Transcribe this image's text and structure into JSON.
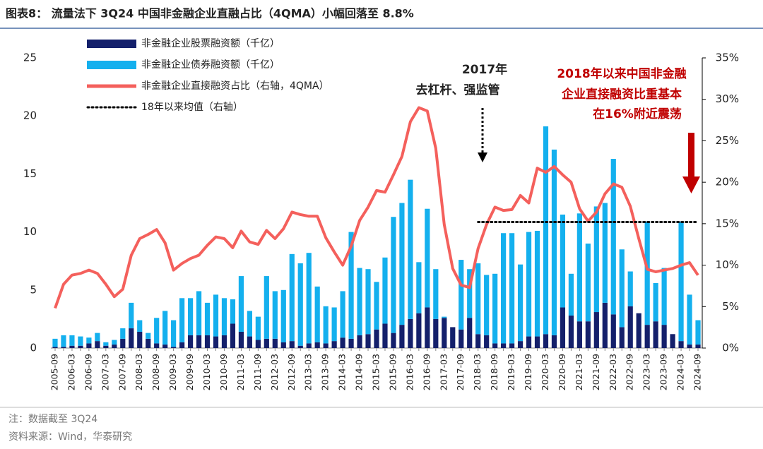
{
  "chart_data": {
    "type": "bar",
    "title": "图表8：  流量法下 3Q24 中国非金融企业直融占比（4QMA）小幅回落至 8.8%",
    "notes": [
      "注：数据截至 3Q24",
      "资料来源：Wind，华泰研究"
    ],
    "annotations": [
      "2017年",
      "去杠杆、强监管",
      "2018年以来中国非金融",
      "企业直接融资比重基本",
      "在16%附近震荡"
    ],
    "categories": [
      "2005-09",
      null,
      "2006-03",
      null,
      "2006-09",
      null,
      "2007-03",
      null,
      "2007-09",
      null,
      "2008-03",
      null,
      "2008-09",
      null,
      "2009-03",
      null,
      "2009-09",
      null,
      "2010-03",
      null,
      "2010-09",
      null,
      "2011-03",
      null,
      "2011-09",
      null,
      "2012-03",
      null,
      "2012-09",
      null,
      "2013-03",
      null,
      "2013-09",
      null,
      "2014-03",
      null,
      "2014-09",
      null,
      "2015-03",
      null,
      "2015-09",
      null,
      "2016-03",
      null,
      "2016-09",
      null,
      "2017-03",
      null,
      "2017-09",
      null,
      "2018-03",
      null,
      "2018-09",
      null,
      "2019-03",
      null,
      "2019-09",
      null,
      "2020-03",
      null,
      "2020-09",
      null,
      "2021-03",
      null,
      "2021-09",
      null,
      "2022-03",
      null,
      "2022-09",
      null,
      "2023-03",
      null,
      "2023-09",
      null,
      "2024-03",
      null,
      "2024-09"
    ],
    "series": [
      {
        "name": "非金融企业股票融资额（千亿）",
        "type": "bar",
        "stack": "a",
        "color": "#14206b",
        "values": [
          0.1,
          0.1,
          0.2,
          0.2,
          0.4,
          0.6,
          0.2,
          0.3,
          0.8,
          1.7,
          1.4,
          0.8,
          0.4,
          0.3,
          0.1,
          0.5,
          1.1,
          1.1,
          1.1,
          1.0,
          1.1,
          2.1,
          1.4,
          1.0,
          0.7,
          0.8,
          0.8,
          0.5,
          0.6,
          0.2,
          0.4,
          0.5,
          0.4,
          0.6,
          0.9,
          0.8,
          1.1,
          1.2,
          1.6,
          2.1,
          1.3,
          2.0,
          2.5,
          3.0,
          3.5,
          2.5,
          2.6,
          1.8,
          1.6,
          2.6,
          1.2,
          1.1,
          0.4,
          0.4,
          0.4,
          0.6,
          1.0,
          1.0,
          1.2,
          1.1,
          3.5,
          2.8,
          2.3,
          2.3,
          3.1,
          3.9,
          2.9,
          1.8,
          3.6,
          3.0,
          2.0,
          2.3,
          2.0,
          1.2,
          0.6,
          0.3,
          0.3
        ]
      },
      {
        "name": "非金融企业债券融资额（千亿）",
        "type": "bar",
        "stack": "a",
        "color": "#14b0ee",
        "values": [
          0.7,
          1.0,
          0.9,
          0.8,
          0.5,
          0.7,
          0.3,
          0.4,
          0.9,
          2.2,
          1.0,
          0.5,
          2.2,
          2.9,
          2.3,
          3.8,
          3.2,
          3.8,
          2.8,
          3.6,
          3.2,
          2.1,
          4.8,
          2.2,
          2.0,
          5.4,
          4.1,
          4.5,
          7.5,
          7.1,
          7.8,
          4.8,
          3.2,
          2.9,
          4.0,
          9.2,
          5.8,
          5.6,
          4.1,
          5.7,
          10.0,
          10.5,
          12.0,
          4.4,
          8.5,
          4.3,
          0.1,
          0,
          6.0,
          4.2,
          6.1,
          5.2,
          6.0,
          9.5,
          9.5,
          6.6,
          9.0,
          9.1,
          17.9,
          16.0,
          8.0,
          3.6,
          9.3,
          6.7,
          9.1,
          8.6,
          13.4,
          6.7,
          3.0,
          0,
          8.9,
          3.3,
          4.9,
          0,
          10.3,
          4.3,
          2.1
        ]
      },
      {
        "name": "非金融企业直接融资占比（右轴，4QMA）",
        "type": "line",
        "axis": "y2",
        "color": "#f4605c",
        "values": [
          4.8,
          7.7,
          8.8,
          9.0,
          9.4,
          9.0,
          7.7,
          6.2,
          7.1,
          11.2,
          13.2,
          13.7,
          14.3,
          12.7,
          9.4,
          10.2,
          10.8,
          11.2,
          12.4,
          13.4,
          13.2,
          12.1,
          14.1,
          12.8,
          12.5,
          14.2,
          13.2,
          14.4,
          16.4,
          16.1,
          15.9,
          15.9,
          13.3,
          11.6,
          10.0,
          12.3,
          15.4,
          17.0,
          19.0,
          18.8,
          20.9,
          23.1,
          27.3,
          29.0,
          28.6,
          24.1,
          14.9,
          9.6,
          7.6,
          7.3,
          12.0,
          14.9,
          17.0,
          16.6,
          16.7,
          18.4,
          17.5,
          21.7,
          21.2,
          21.9,
          20.9,
          20.0,
          16.8,
          15.3,
          16.4,
          18.6,
          19.8,
          19.4,
          17.1,
          13.2,
          9.5,
          9.2,
          9.4,
          9.6,
          10.0,
          10.3,
          8.8
        ]
      },
      {
        "name": "18年以来均值（右轴）",
        "type": "line",
        "axis": "y2",
        "dash": "dotted",
        "color": "#000000",
        "values": [
          null,
          null,
          null,
          null,
          null,
          null,
          null,
          null,
          null,
          null,
          null,
          null,
          null,
          null,
          null,
          null,
          null,
          null,
          null,
          null,
          null,
          null,
          null,
          null,
          null,
          null,
          null,
          null,
          null,
          null,
          null,
          null,
          null,
          null,
          null,
          null,
          null,
          null,
          null,
          null,
          null,
          null,
          null,
          null,
          null,
          null,
          null,
          null,
          null,
          null,
          15.2,
          15.2,
          15.2,
          15.2,
          15.2,
          15.2,
          15.2,
          15.2,
          15.2,
          15.2,
          15.2,
          15.2,
          15.2,
          15.2,
          15.2,
          15.2,
          15.2,
          15.2,
          15.2,
          15.2,
          15.2,
          15.2,
          15.2,
          15.2,
          15.2,
          15.2,
          15.2
        ]
      }
    ],
    "ylim": [
      0,
      25
    ],
    "yticks": [
      0,
      5,
      10,
      15,
      20,
      25
    ],
    "y2lim": [
      0,
      35
    ],
    "y2ticks": [
      {
        "value": 0,
        "label": "0%"
      },
      {
        "value": 5,
        "label": "5%"
      },
      {
        "value": 10,
        "label": "10%"
      },
      {
        "value": 15,
        "label": "15%"
      },
      {
        "value": 20,
        "label": "20%"
      },
      {
        "value": 25,
        "label": "25%"
      },
      {
        "value": 30,
        "label": "30%"
      },
      {
        "value": 35,
        "label": "35%"
      }
    ],
    "legend": "upper left"
  }
}
